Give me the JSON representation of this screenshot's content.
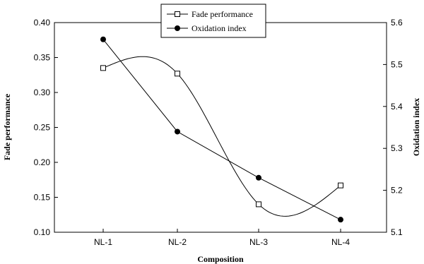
{
  "chart_data": {
    "type": "line",
    "title": "",
    "xlabel": "Composition",
    "categories": [
      "NL-1",
      "NL-2",
      "NL-3",
      "NL-4"
    ],
    "y_left": {
      "label": "Fade performance",
      "lim": [
        0.1,
        0.4
      ],
      "ticks": [
        "0.10",
        "0.15",
        "0.20",
        "0.25",
        "0.30",
        "0.35",
        "0.40"
      ]
    },
    "y_right": {
      "label": "Oxidation index",
      "lim": [
        5.1,
        5.6
      ],
      "ticks": [
        "5.1",
        "5.2",
        "5.3",
        "5.4",
        "5.5",
        "5.6"
      ]
    },
    "series": [
      {
        "name": "Fade performance",
        "axis": "left",
        "marker": "open-square",
        "curve": "spline",
        "values": [
          0.335,
          0.327,
          0.14,
          0.167
        ]
      },
      {
        "name": "Oxidation index",
        "axis": "right",
        "marker": "filled-circle",
        "curve": "linear",
        "values": [
          5.56,
          5.34,
          5.23,
          5.13
        ]
      }
    ],
    "legend": {
      "position": "top-center"
    },
    "grid": false,
    "colors": {
      "line": "#000000",
      "background": "#ffffff"
    }
  }
}
